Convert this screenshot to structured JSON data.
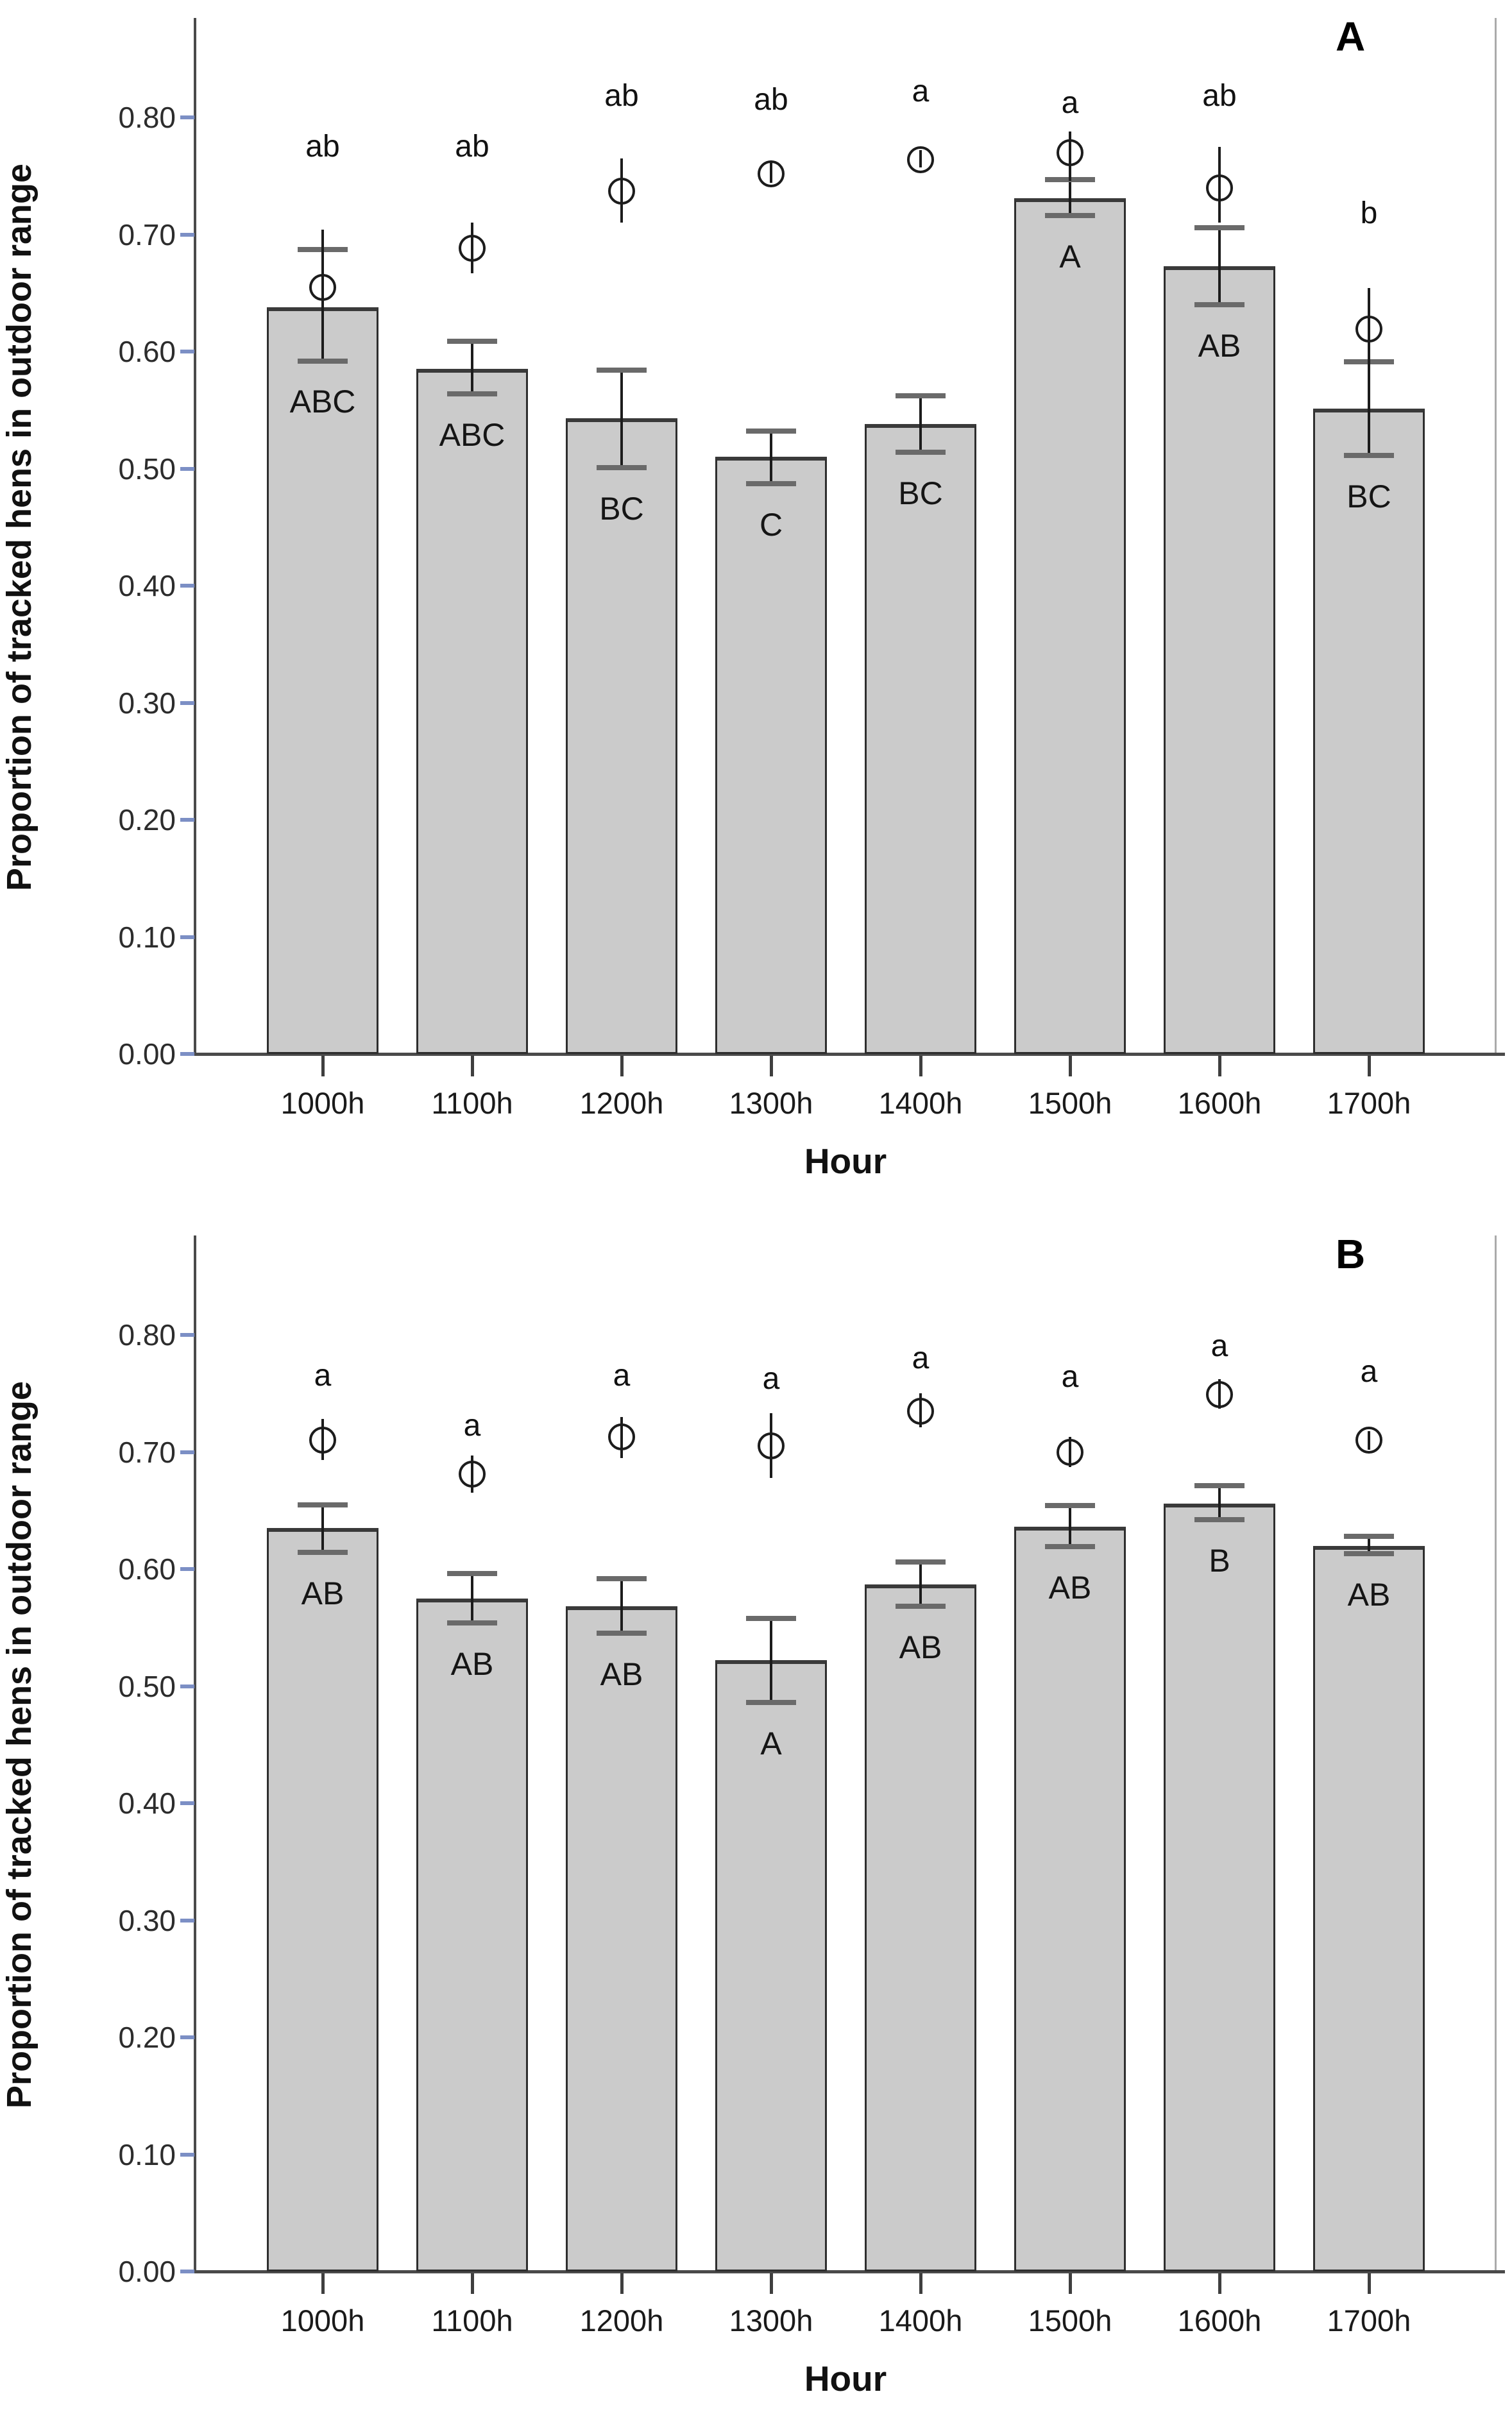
{
  "figure": {
    "xlabel": "Hour",
    "ylabel": "Proportion of tracked hens in outdoor range"
  },
  "colors": {
    "bar_fill": "#cbcbcb",
    "bar_border": "#2e2e2e",
    "bar_top_edge": "#3a3a3a",
    "error_line": "#1c1c1c",
    "error_cap": "#6a6a6a",
    "y_tick": "#7c8fc5",
    "x_tick": "#3f3f3f",
    "axis_line": "#4a4a4a",
    "right_spine": "#ababab",
    "text": "#111111"
  },
  "chart_data": [
    {
      "type": "bar",
      "panel_label": "A",
      "title": "",
      "xlabel": "Hour",
      "ylabel": "Proportion of tracked hens in outdoor range",
      "ylim": [
        0.0,
        0.885
      ],
      "yticks": [
        "0.00",
        "0.10",
        "0.20",
        "0.30",
        "0.40",
        "0.50",
        "0.60",
        "0.70",
        "0.80"
      ],
      "categories": [
        "1000h",
        "1100h",
        "1200h",
        "1300h",
        "1400h",
        "1500h",
        "1600h",
        "1700h"
      ],
      "bars": [
        {
          "hour": "1000h",
          "mean": 0.638,
          "se_low": 0.592,
          "se_high": 0.687,
          "group_label": "ABC",
          "circle_mean": 0.655,
          "circle_low": 0.604,
          "circle_high": 0.704,
          "letter": "ab",
          "letter_y": 0.775
        },
        {
          "hour": "1100h",
          "mean": 0.585,
          "se_low": 0.564,
          "se_high": 0.609,
          "group_label": "ABC",
          "circle_mean": 0.688,
          "circle_low": 0.667,
          "circle_high": 0.71,
          "letter": "ab",
          "letter_y": 0.775
        },
        {
          "hour": "1200h",
          "mean": 0.543,
          "se_low": 0.501,
          "se_high": 0.584,
          "group_label": "BC",
          "circle_mean": 0.737,
          "circle_low": 0.71,
          "circle_high": 0.765,
          "letter": "ab",
          "letter_y": 0.818
        },
        {
          "hour": "1300h",
          "mean": 0.51,
          "se_low": 0.487,
          "se_high": 0.532,
          "group_label": "C",
          "circle_mean": 0.752,
          "circle_low": 0.744,
          "circle_high": 0.761,
          "letter": "ab",
          "letter_y": 0.815
        },
        {
          "hour": "1400h",
          "mean": 0.538,
          "se_low": 0.514,
          "se_high": 0.562,
          "group_label": "BC",
          "circle_mean": 0.764,
          "circle_low": 0.757,
          "circle_high": 0.772,
          "letter": "a",
          "letter_y": 0.822
        },
        {
          "hour": "1500h",
          "mean": 0.731,
          "se_low": 0.716,
          "se_high": 0.747,
          "group_label": "A",
          "circle_mean": 0.77,
          "circle_low": 0.746,
          "circle_high": 0.788,
          "letter": "a",
          "letter_y": 0.812
        },
        {
          "hour": "1600h",
          "mean": 0.673,
          "se_low": 0.64,
          "se_high": 0.706,
          "group_label": "AB",
          "circle_mean": 0.74,
          "circle_low": 0.71,
          "circle_high": 0.775,
          "letter": "ab",
          "letter_y": 0.818
        },
        {
          "hour": "1700h",
          "mean": 0.551,
          "se_low": 0.511,
          "se_high": 0.591,
          "group_label": "BC",
          "circle_mean": 0.619,
          "circle_low": 0.585,
          "circle_high": 0.654,
          "letter": "b",
          "letter_y": 0.718
        }
      ]
    },
    {
      "type": "bar",
      "panel_label": "B",
      "title": "",
      "xlabel": "Hour",
      "ylabel": "Proportion of tracked hens in outdoor range",
      "ylim": [
        0.0,
        0.885
      ],
      "yticks": [
        "0.00",
        "0.10",
        "0.20",
        "0.30",
        "0.40",
        "0.50",
        "0.60",
        "0.70",
        "0.80"
      ],
      "categories": [
        "1000h",
        "1100h",
        "1200h",
        "1300h",
        "1400h",
        "1500h",
        "1600h",
        "1700h"
      ],
      "bars": [
        {
          "hour": "1000h",
          "mean": 0.635,
          "se_low": 0.614,
          "se_high": 0.655,
          "group_label": "AB",
          "circle_mean": 0.71,
          "circle_low": 0.693,
          "circle_high": 0.728,
          "letter": "a",
          "letter_y": 0.765
        },
        {
          "hour": "1100h",
          "mean": 0.575,
          "se_low": 0.554,
          "se_high": 0.596,
          "group_label": "AB",
          "circle_mean": 0.681,
          "circle_low": 0.665,
          "circle_high": 0.697,
          "letter": "a",
          "letter_y": 0.722
        },
        {
          "hour": "1200h",
          "mean": 0.568,
          "se_low": 0.545,
          "se_high": 0.592,
          "group_label": "AB",
          "circle_mean": 0.713,
          "circle_low": 0.695,
          "circle_high": 0.73,
          "letter": "a",
          "letter_y": 0.765
        },
        {
          "hour": "1300h",
          "mean": 0.522,
          "se_low": 0.486,
          "se_high": 0.558,
          "group_label": "A",
          "circle_mean": 0.705,
          "circle_low": 0.678,
          "circle_high": 0.733,
          "letter": "a",
          "letter_y": 0.762
        },
        {
          "hour": "1400h",
          "mean": 0.587,
          "se_low": 0.568,
          "se_high": 0.606,
          "group_label": "AB",
          "circle_mean": 0.735,
          "circle_low": 0.721,
          "circle_high": 0.75,
          "letter": "a",
          "letter_y": 0.78
        },
        {
          "hour": "1500h",
          "mean": 0.636,
          "se_low": 0.619,
          "se_high": 0.654,
          "group_label": "AB",
          "circle_mean": 0.7,
          "circle_low": 0.687,
          "circle_high": 0.713,
          "letter": "a",
          "letter_y": 0.764
        },
        {
          "hour": "1600h",
          "mean": 0.656,
          "se_low": 0.642,
          "se_high": 0.671,
          "group_label": "B",
          "circle_mean": 0.749,
          "circle_low": 0.737,
          "circle_high": 0.762,
          "letter": "a",
          "letter_y": 0.79
        },
        {
          "hour": "1700h",
          "mean": 0.62,
          "se_low": 0.613,
          "se_high": 0.628,
          "group_label": "AB",
          "circle_mean": 0.71,
          "circle_low": 0.702,
          "circle_high": 0.718,
          "letter": "a",
          "letter_y": 0.768
        }
      ]
    }
  ]
}
